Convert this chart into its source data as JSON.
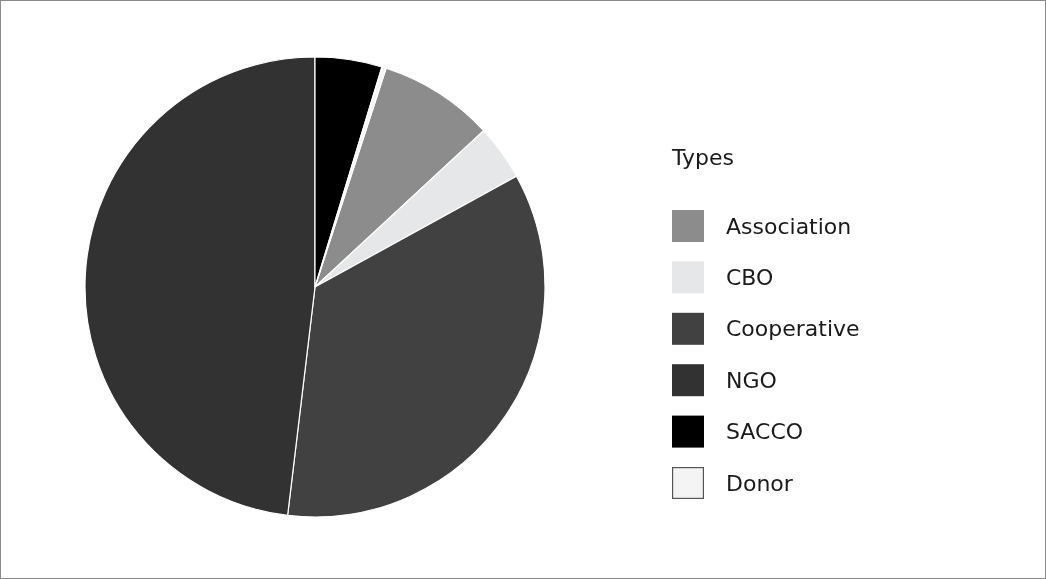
{
  "chart_data": {
    "type": "pie",
    "legend_title": "Types",
    "categories": [
      "Association",
      "CBO",
      "Cooperative",
      "NGO",
      "SACCO",
      "Donor"
    ],
    "values": [
      8.1,
      3.9,
      34.9,
      48.1,
      4.7,
      0.3
    ],
    "colors": [
      "#8c8c8c",
      "#e6e7e8",
      "#414142",
      "#323233",
      "#000000",
      "#f4f4f4"
    ],
    "legend": "right"
  }
}
